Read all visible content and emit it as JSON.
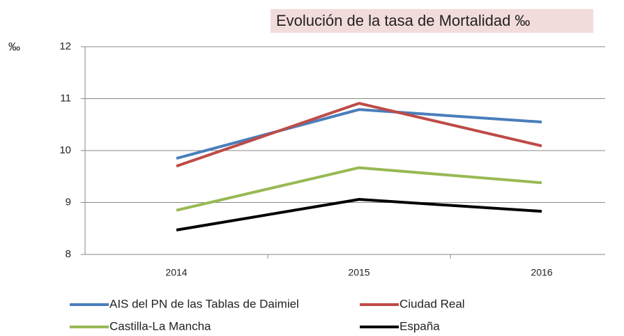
{
  "chart_data": {
    "type": "line",
    "title": "Evolución de la tasa de Mortalidad ‰",
    "y_label": "‰",
    "categories": [
      "2014",
      "2015",
      "2016"
    ],
    "series": [
      {
        "name": "AIS del PN de las Tablas de Daimiel",
        "color": "#4a7ebb",
        "values": [
          9.85,
          10.79,
          10.55
        ]
      },
      {
        "name": "Ciudad Real",
        "color": "#be4b48",
        "values": [
          9.7,
          10.91,
          10.09
        ]
      },
      {
        "name": "Castilla-La Mancha",
        "color": "#98b954",
        "values": [
          8.85,
          9.67,
          9.38
        ]
      },
      {
        "name": "España",
        "color": "#000000",
        "values": [
          8.47,
          9.06,
          8.83
        ]
      }
    ],
    "ylim": [
      8,
      12
    ],
    "yticks": [
      8,
      9,
      10,
      11,
      12
    ],
    "grid": true
  }
}
